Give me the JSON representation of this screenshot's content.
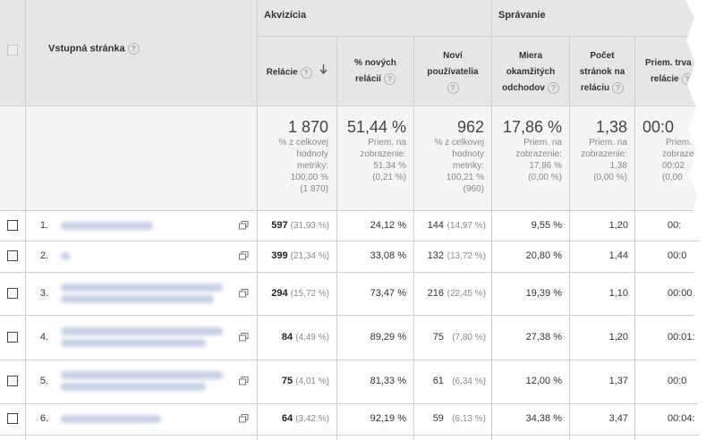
{
  "header": {
    "landing_page_label": "Vstupná stránka",
    "acquisition": "Akvizícia",
    "behavior": "Správanie",
    "columns": [
      {
        "line1": "Relácie",
        "line2": "",
        "line3": ""
      },
      {
        "line1": "% nových",
        "line2": "relácií",
        "line3": ""
      },
      {
        "line1": "Noví",
        "line2": "používatelia",
        "line3": ""
      },
      {
        "line1": "Miera",
        "line2": "okamžitých",
        "line3": "odchodov"
      },
      {
        "line1": "Počet",
        "line2": "stránok na",
        "line3": "reláciu"
      },
      {
        "line1": "Priem. trva",
        "line2": "relácie",
        "line3": ""
      }
    ],
    "sort_icon": "arrow-down-icon",
    "help_glyph": "?"
  },
  "summary": [
    {
      "big": "1 870",
      "lines": [
        "% z celkovej",
        "hodnoty",
        "metriky:",
        "100,00 %",
        "(1 870)"
      ]
    },
    {
      "big": "51,44 %",
      "lines": [
        "Priem. na",
        "zobrazenie:",
        "51,34 %",
        "(0,21 %)"
      ]
    },
    {
      "big": "962",
      "lines": [
        "% z celkovej",
        "hodnoty",
        "metriky:",
        "100,21 %",
        "(960)"
      ]
    },
    {
      "big": "17,86 %",
      "lines": [
        "Priem. na",
        "zobrazenie:",
        "17,86 %",
        "(0,00 %)"
      ]
    },
    {
      "big": "1,38",
      "lines": [
        "Priem. na",
        "zobrazenie:",
        "1,38",
        "(0,00 %)"
      ]
    },
    {
      "big": "00:0",
      "lines": [
        "Priem.",
        "zobraze",
        "00:02",
        "(0,00"
      ]
    }
  ],
  "rows": [
    {
      "num": "1.",
      "sessions": "597",
      "sessions_pct": "(31,93 %)",
      "new_pct": "24,12 %",
      "new_users": "144",
      "new_users_pct": "(14,97 %)",
      "bounce": "9,55 %",
      "pages": "1,20",
      "duration": "00:"
    },
    {
      "num": "2.",
      "sessions": "399",
      "sessions_pct": "(21,34 %)",
      "new_pct": "33,08 %",
      "new_users": "132",
      "new_users_pct": "(13,72 %)",
      "bounce": "20,80 %",
      "pages": "1,44",
      "duration": "00:0"
    },
    {
      "num": "3.",
      "sessions": "294",
      "sessions_pct": "(15,72 %)",
      "new_pct": "73,47 %",
      "new_users": "216",
      "new_users_pct": "(22,45 %)",
      "bounce": "19,39 %",
      "pages": "1,10",
      "duration": "00:00"
    },
    {
      "num": "4.",
      "sessions": "84",
      "sessions_pct": "(4,49 %)",
      "new_pct": "89,29 %",
      "new_users": "75",
      "new_users_pct": "(7,80 %)",
      "bounce": "27,38 %",
      "pages": "1,20",
      "duration": "00:01:"
    },
    {
      "num": "5.",
      "sessions": "75",
      "sessions_pct": "(4,01 %)",
      "new_pct": "81,33 %",
      "new_users": "61",
      "new_users_pct": "(6,34 %)",
      "bounce": "12,00 %",
      "pages": "1,37",
      "duration": "00:0"
    },
    {
      "num": "6.",
      "sessions": "64",
      "sessions_pct": "(3,42 %)",
      "new_pct": "92,19 %",
      "new_users": "59",
      "new_users_pct": "(6,13 %)",
      "bounce": "34,38 %",
      "pages": "3,47",
      "duration": "00:04:"
    }
  ]
}
